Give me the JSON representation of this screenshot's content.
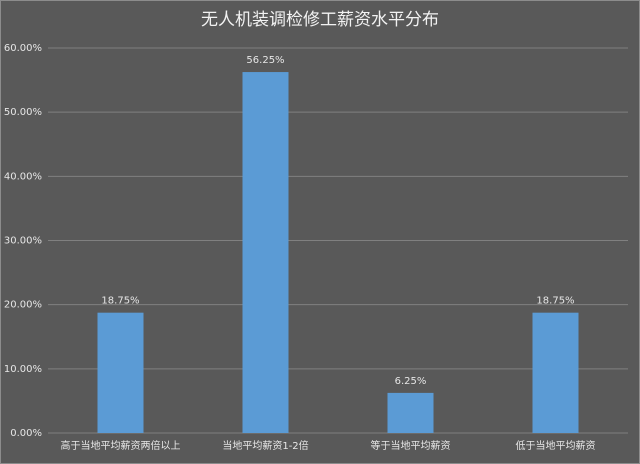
{
  "chart_data": {
    "type": "bar",
    "title": "无人机装调检修工薪资水平分布",
    "categories": [
      "高于当地平均薪资两倍以上",
      "当地平均薪资1-2倍",
      "等于当地平均薪资",
      "低于当地平均薪资"
    ],
    "values": [
      18.75,
      56.25,
      6.25,
      18.75
    ],
    "value_labels": [
      "18.75%",
      "56.25%",
      "6.25%",
      "18.75%"
    ],
    "color": "#5b9bd5",
    "ylim": [
      0,
      60
    ],
    "yticks": [
      {
        "value": 0,
        "label": "0.00%"
      },
      {
        "value": 10,
        "label": "10.00%"
      },
      {
        "value": 20,
        "label": "20.00%"
      },
      {
        "value": 30,
        "label": "30.00%"
      },
      {
        "value": 40,
        "label": "40.00%"
      },
      {
        "value": 50,
        "label": "50.00%"
      },
      {
        "value": 60,
        "label": "60.00%"
      }
    ],
    "grid": true
  }
}
